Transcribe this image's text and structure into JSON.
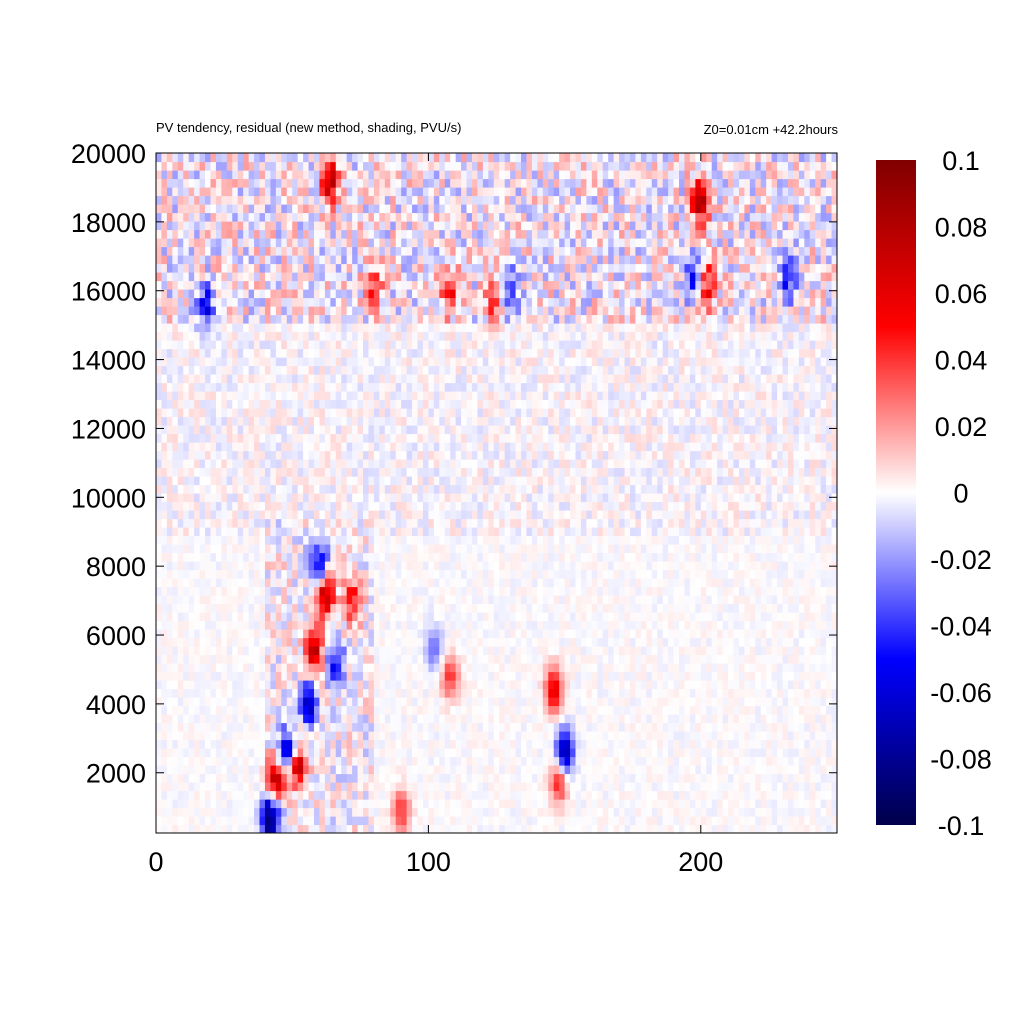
{
  "chart_data": {
    "type": "heatmap",
    "title": "PV tendency, residual (new method, shading, PVU/s)",
    "subtitle": "Z0=0.01cm   +42.2hours",
    "xlabel": "",
    "ylabel": "",
    "xlim": [
      0,
      250
    ],
    "ylim": [
      250,
      20000
    ],
    "x_ticks": [
      "0",
      "100",
      "200"
    ],
    "y_ticks": [
      "2000",
      "4000",
      "6000",
      "8000",
      "10000",
      "12000",
      "14000",
      "16000",
      "18000",
      "20000"
    ],
    "colorbar": {
      "range": [
        -0.1,
        0.1
      ],
      "ticks": [
        "0.1",
        "0.08",
        "0.06",
        "0.04",
        "0.02",
        "0",
        "-0.02",
        "-0.04",
        "-0.06",
        "-0.08",
        "-0.1"
      ],
      "colors": [
        "#00004a",
        "#0000ff",
        "#ffffff",
        "#ff0000",
        "#800000"
      ]
    },
    "grid": false,
    "features": [
      {
        "x": 42,
        "y": 700,
        "value": -0.1
      },
      {
        "x": 44,
        "y": 1800,
        "value": 0.08
      },
      {
        "x": 48,
        "y": 2600,
        "value": -0.07
      },
      {
        "x": 52,
        "y": 2200,
        "value": 0.07
      },
      {
        "x": 56,
        "y": 4000,
        "value": -0.06
      },
      {
        "x": 58,
        "y": 5600,
        "value": 0.07
      },
      {
        "x": 60,
        "y": 8000,
        "value": -0.06
      },
      {
        "x": 62,
        "y": 7200,
        "value": 0.08
      },
      {
        "x": 66,
        "y": 5200,
        "value": -0.05
      },
      {
        "x": 72,
        "y": 7000,
        "value": 0.05
      },
      {
        "x": 64,
        "y": 19200,
        "value": 0.07
      },
      {
        "x": 108,
        "y": 4800,
        "value": 0.04
      },
      {
        "x": 102,
        "y": 5600,
        "value": -0.03
      },
      {
        "x": 146,
        "y": 4400,
        "value": 0.06
      },
      {
        "x": 150,
        "y": 2600,
        "value": -0.08
      },
      {
        "x": 148,
        "y": 1800,
        "value": 0.05
      },
      {
        "x": 200,
        "y": 18600,
        "value": 0.08
      },
      {
        "x": 198,
        "y": 16400,
        "value": -0.05
      },
      {
        "x": 202,
        "y": 16200,
        "value": 0.06
      },
      {
        "x": 18,
        "y": 15600,
        "value": -0.05
      },
      {
        "x": 80,
        "y": 16200,
        "value": 0.04
      },
      {
        "x": 108,
        "y": 16000,
        "value": 0.05
      },
      {
        "x": 124,
        "y": 15800,
        "value": 0.04
      },
      {
        "x": 130,
        "y": 16000,
        "value": -0.04
      },
      {
        "x": 232,
        "y": 16400,
        "value": -0.05
      },
      {
        "x": 90,
        "y": 900,
        "value": 0.04
      }
    ]
  }
}
